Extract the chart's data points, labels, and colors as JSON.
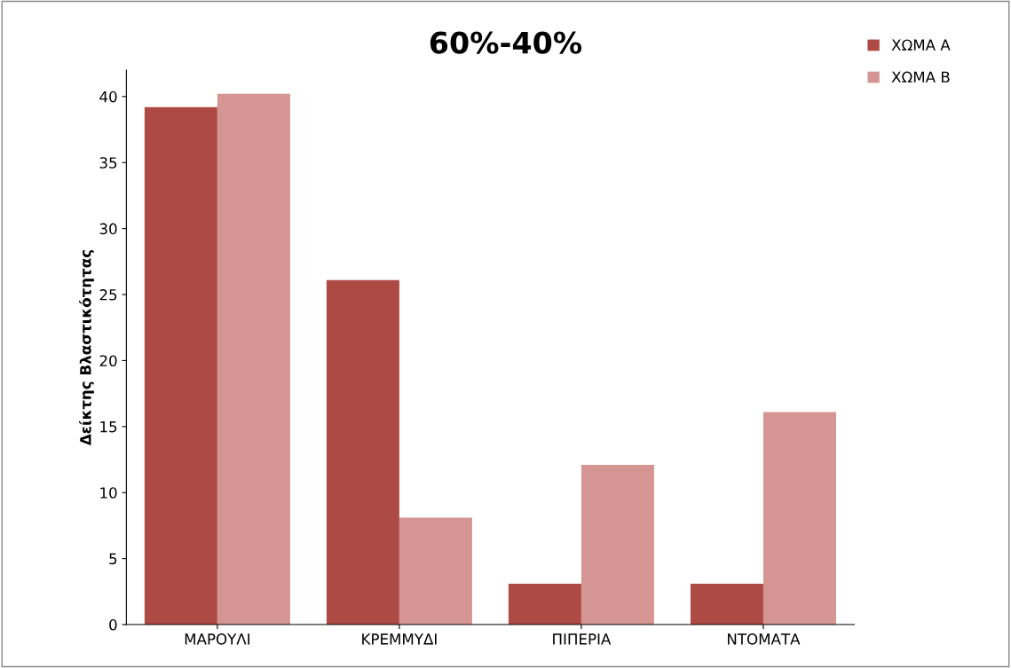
{
  "chart_data": {
    "type": "bar",
    "title": "60%-40%",
    "ylabel": "Δείκτης Βλαστικότητας",
    "categories": [
      "ΜΑΡΟΥΛΙ",
      "ΚΡΕΜΜΥΔΙ",
      "ΠΙΠΕΡΙΑ",
      "ΝΤΟΜΑΤΑ"
    ],
    "series": [
      {
        "name": "ΧΩΜΑ Α",
        "color": "#ae4a44",
        "values": [
          39.2,
          26.1,
          3.1,
          3.1
        ]
      },
      {
        "name": "ΧΩΜΑ Β",
        "color": "#d59593",
        "values": [
          40.2,
          8.1,
          12.1,
          16.1
        ]
      }
    ],
    "ylim": [
      0,
      42
    ],
    "yticks": [
      0,
      5,
      10,
      15,
      20,
      25,
      30,
      35,
      40
    ],
    "grid": false,
    "legend": "top right"
  }
}
